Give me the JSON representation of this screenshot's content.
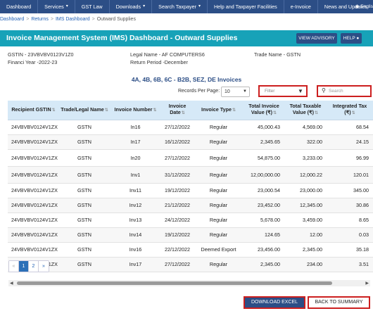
{
  "nav": {
    "items": [
      {
        "label": "Dashboard",
        "caret": false
      },
      {
        "label": "Services",
        "caret": true
      },
      {
        "label": "GST Law",
        "caret": false
      },
      {
        "label": "Downloads",
        "caret": true
      },
      {
        "label": "Search Taxpayer",
        "caret": true
      },
      {
        "label": "Help and Taxpayer Facilities",
        "caret": false
      },
      {
        "label": "e-Invoice",
        "caret": false
      },
      {
        "label": "News and Updates",
        "caret": false
      }
    ],
    "language": "Englis"
  },
  "breadcrumb": {
    "items": [
      "Dashboard",
      "Returns",
      "IMS Dashboard",
      "Outward Supplies"
    ],
    "separator": ">"
  },
  "header": {
    "title": "Invoice Management System (IMS) Dashboard - Outward Supplies",
    "advisory_label": "VIEW ADVISORY",
    "help_label": "HELP"
  },
  "taxpayer": {
    "gstin": "GSTIN - 23VBVBV0123V1Z0",
    "legal_name": "Legal Name - AF COMPUTERS6",
    "trade_name": "Trade Name - GSTN",
    "financial_year": "Financi Year -2022-23",
    "return_period": "Return Period -December"
  },
  "section_title": "4A, 4B, 6B, 6C - B2B, SEZ, DE Invoices",
  "controls": {
    "records_label": "Records Per Page:",
    "records_value": "10",
    "filter_placeholder": "Filter",
    "search_placeholder": "Search"
  },
  "table": {
    "columns": [
      {
        "label": "Recipient GSTIN",
        "sort": true
      },
      {
        "label": "Trade/Legal Name",
        "sort": true
      },
      {
        "label": "Invoice Number",
        "sort": true
      },
      {
        "label": "Invoice Date",
        "sort": true
      },
      {
        "label": "Invoice Type",
        "sort": true
      },
      {
        "label": "Total Invoice Value (₹)",
        "sort": true
      },
      {
        "label": "Total Taxable Value (₹)",
        "sort": true
      },
      {
        "label": "Integrated Tax (₹)",
        "sort": true
      }
    ],
    "rows": [
      [
        "24VBVBV0124V1ZX",
        "GSTN",
        "In16",
        "27/12/2022",
        "Regular",
        "45,000.43",
        "4,569.00",
        "68.54"
      ],
      [
        "24VBVBV0124V1ZX",
        "GSTN",
        "In17",
        "16/12/2022",
        "Regular",
        "2,345.65",
        "322.00",
        "24.15"
      ],
      [
        "24VBVBV0124V1ZX",
        "GSTN",
        "In20",
        "27/12/2022",
        "Regular",
        "54,875.00",
        "3,233.00",
        "96.99"
      ],
      [
        "24VBVBV0124V1ZX",
        "GSTN",
        "Inv1",
        "31/12/2022",
        "Regular",
        "12,00,000.00",
        "12,000.22",
        "120.01"
      ],
      [
        "24VBVBV0124V1ZX",
        "GSTN",
        "Inv11",
        "19/12/2022",
        "Regular",
        "23,000.54",
        "23,000.00",
        "345.00"
      ],
      [
        "24VBVBV0124V1ZX",
        "GSTN",
        "Inv12",
        "21/12/2022",
        "Regular",
        "23,452.00",
        "12,345.00",
        "30.86"
      ],
      [
        "24VBVBV0124V1ZX",
        "GSTN",
        "Inv13",
        "24/12/2022",
        "Regular",
        "5,678.00",
        "3,459.00",
        "8.65"
      ],
      [
        "24VBVBV0124V1ZX",
        "GSTN",
        "Inv14",
        "19/12/2022",
        "Regular",
        "124.65",
        "12.00",
        "0.03"
      ],
      [
        "24VBVBV0124V1ZX",
        "GSTN",
        "Inv16",
        "22/12/2022",
        "Deemed Export",
        "23,456.00",
        "2,345.00",
        "35.18"
      ],
      [
        "24VBVBV0124V1ZX",
        "GSTN",
        "Inv17",
        "27/12/2022",
        "Regular",
        "2,345.00",
        "234.00",
        "3.51"
      ]
    ]
  },
  "pagination": {
    "prev": "«",
    "pages": [
      "1",
      "2"
    ],
    "current": "1",
    "next": "»"
  },
  "scrollbar": {
    "left_arrow": "◀",
    "right_arrow": "▶"
  },
  "footer": {
    "download_label": "DOWNLOAD EXCEL",
    "back_label": "BACK TO SUMMARY"
  },
  "colors": {
    "nav_bg": "#2c4e86",
    "title_bar": "#17a2b8",
    "table_header": "#d6e9f7",
    "highlight": "#cc1f1f"
  }
}
